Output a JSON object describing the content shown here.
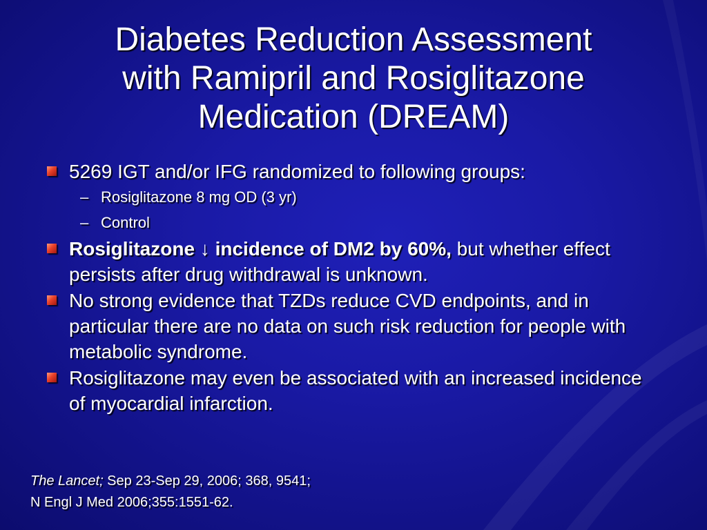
{
  "slide": {
    "title_lines": [
      "Diabetes Reduction Assessment",
      "with Ramipril and Rosiglitazone",
      "Medication (DREAM)"
    ],
    "bullets": [
      {
        "text": "5269 IGT and/or IFG randomized to following groups:",
        "sub_items": [
          "Rosiglitazone 8 mg OD (3 yr)",
          "Control"
        ]
      },
      {
        "bold_text": "Rosiglitazone ↓ incidence of DM2 by 60%,",
        "text": " but whether effect persists after drug withdrawal is unknown."
      },
      {
        "text": "No strong evidence that TZDs reduce CVD endpoints, and in particular there are no data on such risk reduction for people with metabolic syndrome."
      },
      {
        "text": "Rosiglitazone may even be associated with an increased incidence of myocardial infarction."
      }
    ],
    "sub_dash": "–",
    "references": {
      "line1_italic": "The Lancet;",
      "line1_rest": " Sep 23-Sep 29, 2006; 368, 9541;",
      "line2": "N Engl J Med 2006;355:1551-62."
    }
  },
  "colors": {
    "background": "#1a1aa6",
    "bullet_marker": "#e8402a",
    "text": "#ffffff"
  }
}
